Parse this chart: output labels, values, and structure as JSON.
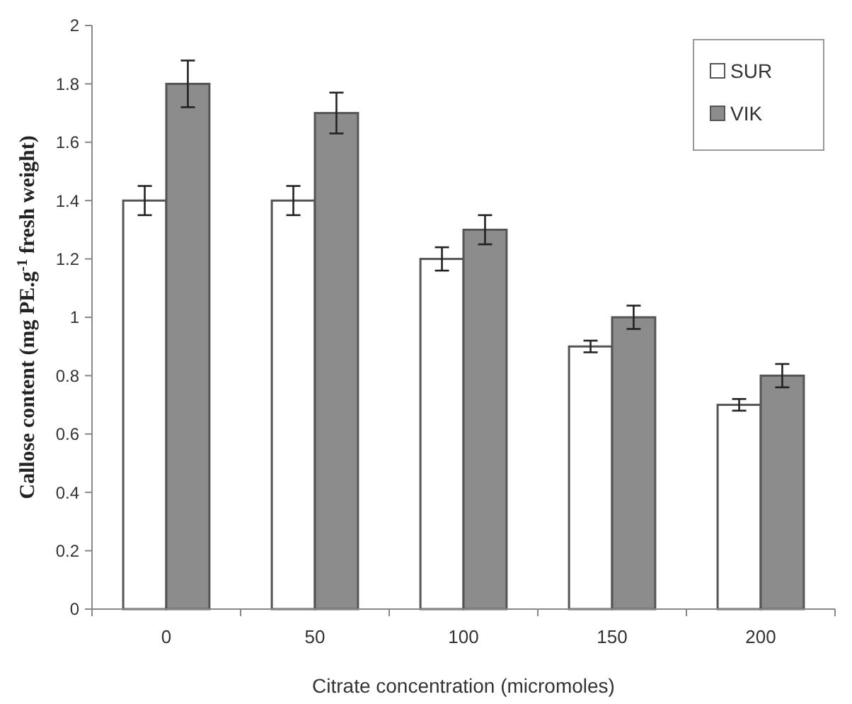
{
  "chart_data": {
    "type": "bar",
    "xlabel": "Citrate concentration (micromoles)",
    "ylabel": "Callose content (mg PE.g$^{-1}$ fresh weight)",
    "categories": [
      "0",
      "50",
      "100",
      "150",
      "200"
    ],
    "series": [
      {
        "name": "SUR",
        "color": "#ffffff",
        "values": [
          1.4,
          1.4,
          1.2,
          0.9,
          0.7
        ],
        "errors": [
          0.05,
          0.05,
          0.04,
          0.02,
          0.02
        ]
      },
      {
        "name": "VIK",
        "color": "#8c8c8c",
        "values": [
          1.8,
          1.7,
          1.3,
          1.0,
          0.8
        ],
        "errors": [
          0.08,
          0.07,
          0.05,
          0.04,
          0.04
        ]
      }
    ],
    "ylim": [
      0,
      2
    ],
    "yticks": [
      0,
      0.2,
      0.4,
      0.6,
      0.8,
      1,
      1.2,
      1.4,
      1.6,
      1.8,
      2
    ],
    "legend": "top right",
    "grid": false
  }
}
